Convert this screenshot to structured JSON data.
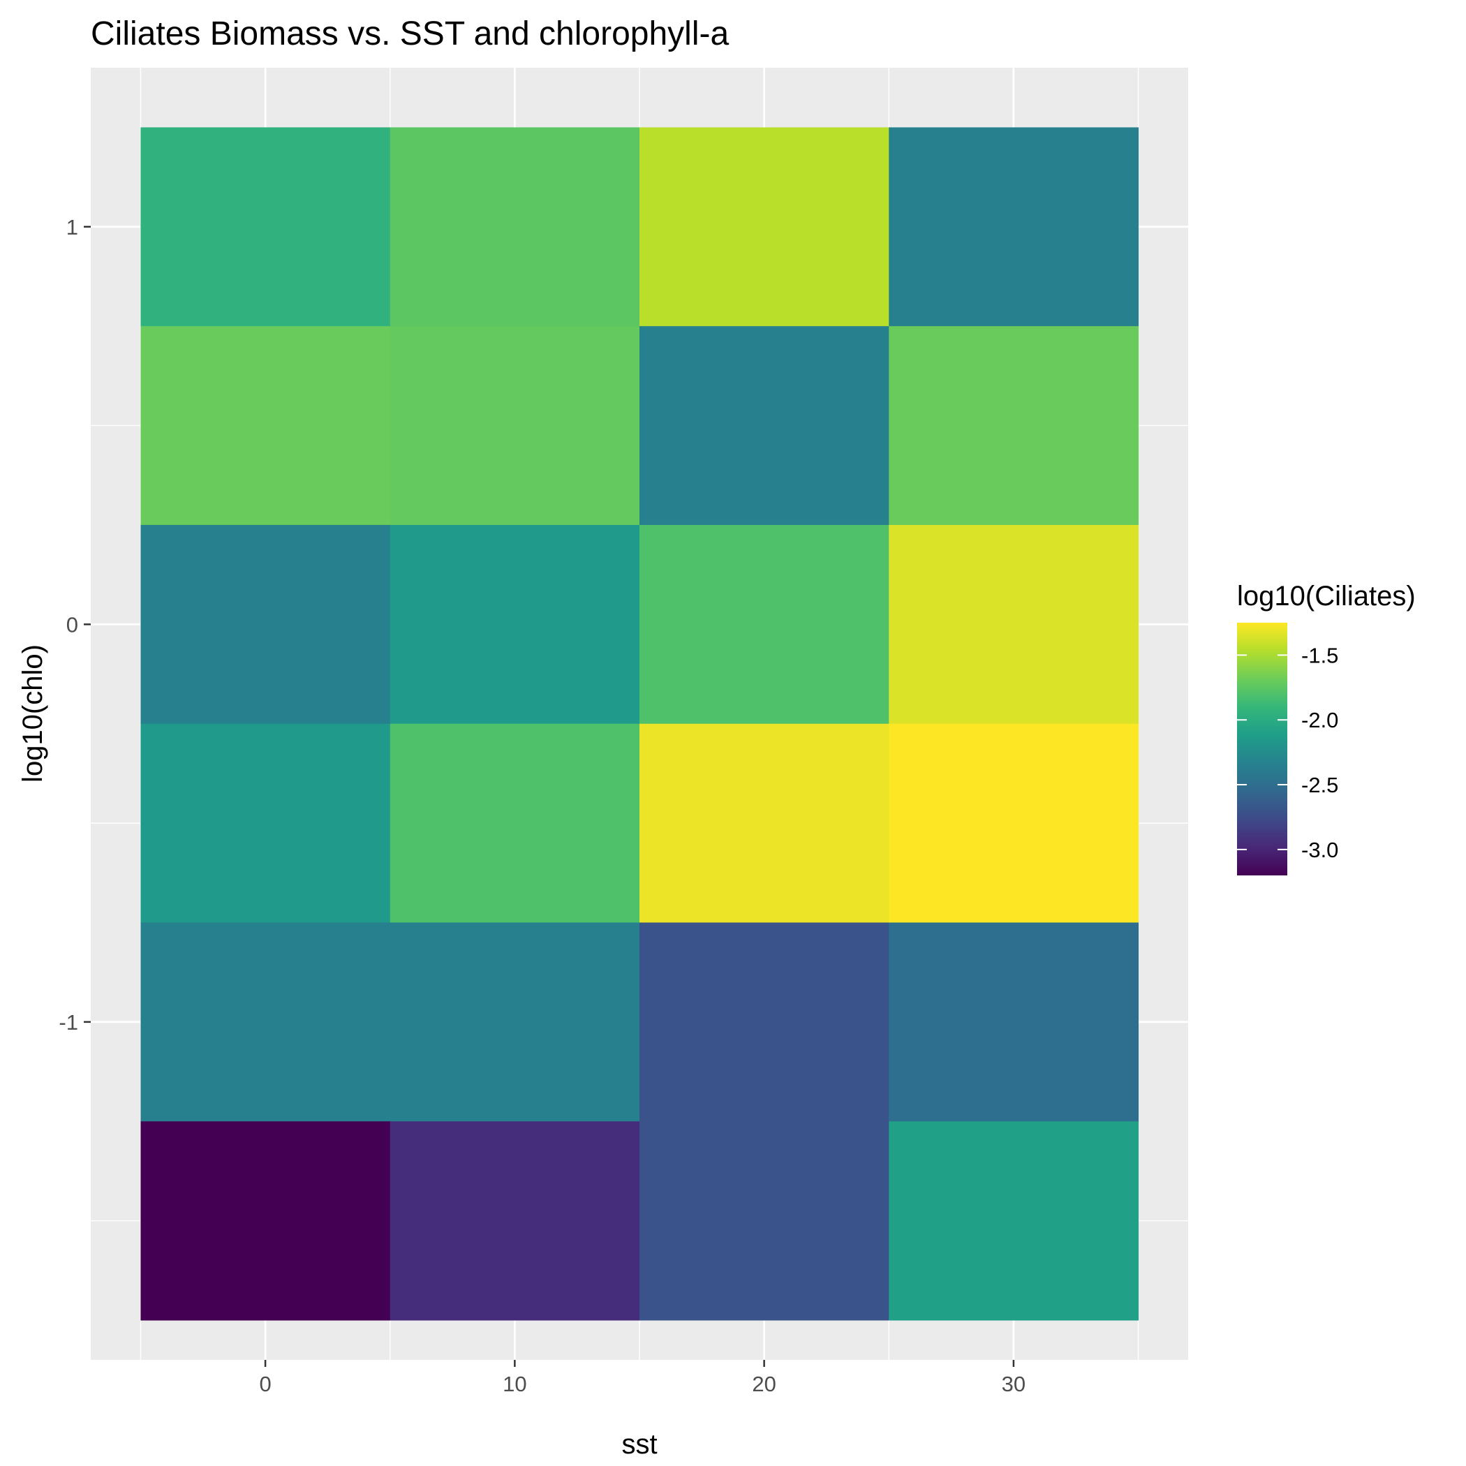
{
  "chart_data": {
    "type": "heatmap",
    "title": "Ciliates Biomass vs. SST and chlorophyll-a",
    "xlabel": "sst",
    "ylabel": "log10(chlo)",
    "x": [
      0,
      10,
      20,
      30
    ],
    "x_bin_width": 10,
    "y": [
      1,
      0.5,
      0,
      -0.5,
      -1,
      -1.5
    ],
    "y_bin_height": 0.5,
    "xlim": [
      -7,
      37
    ],
    "ylim": [
      -1.85,
      1.4
    ],
    "x_ticks": [
      0,
      10,
      20,
      30
    ],
    "x_tick_labels": [
      "0",
      "10",
      "20",
      "30"
    ],
    "y_ticks": [
      1,
      0,
      -1
    ],
    "y_tick_labels": [
      "1",
      "0",
      "-1"
    ],
    "values": [
      [
        -1.95,
        -1.75,
        -1.45,
        -2.35
      ],
      [
        -1.7,
        -1.72,
        -2.35,
        -1.7
      ],
      [
        -2.35,
        -2.15,
        -1.8,
        -1.35
      ],
      [
        -2.15,
        -1.8,
        -1.3,
        -1.25
      ],
      [
        -2.35,
        -2.35,
        -2.7,
        -2.5
      ],
      [
        -3.2,
        -2.95,
        -2.7,
        -2.1
      ]
    ],
    "legend": {
      "title": "log10(Ciliates)",
      "placement": "right",
      "min": -3.2,
      "max": -1.25,
      "ticks": [
        -1.5,
        -2.0,
        -2.5,
        -3.0
      ],
      "tick_labels": [
        "-1.5",
        "-2.0",
        "-2.5",
        "-3.0"
      ],
      "colormap": "viridis"
    },
    "grid": true,
    "panel_background": "#ebebeb",
    "grid_color": "#ffffff"
  }
}
